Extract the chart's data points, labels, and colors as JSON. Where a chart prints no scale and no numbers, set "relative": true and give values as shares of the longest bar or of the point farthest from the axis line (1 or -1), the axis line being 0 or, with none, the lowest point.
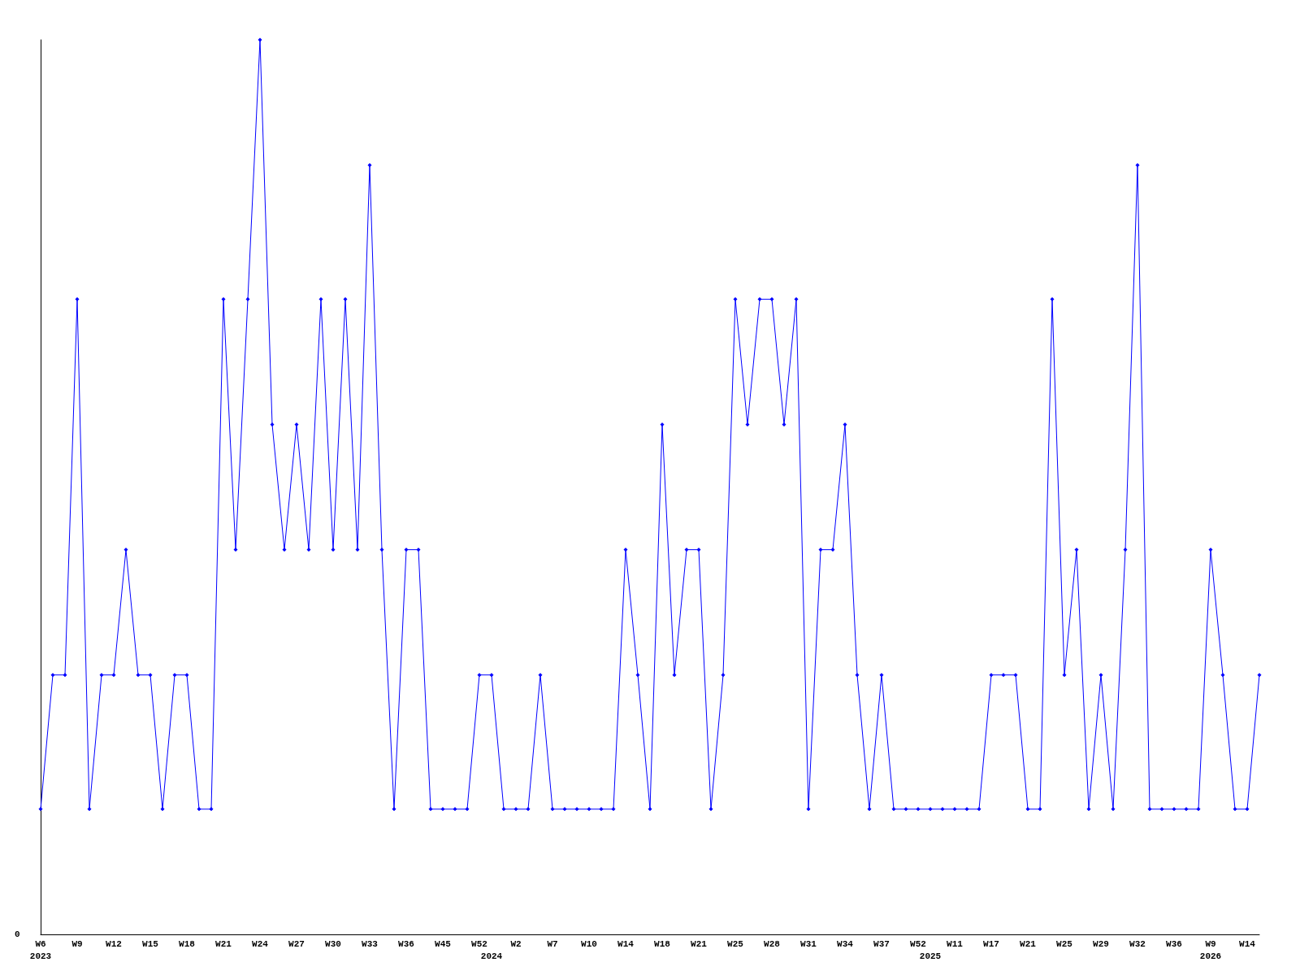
{
  "chart_data": {
    "type": "line",
    "relative": true,
    "annotations": [
      "0"
    ],
    "grid": false,
    "marker": "diamond",
    "line_style": "solid",
    "categories": [
      "W6\n2023",
      null,
      null,
      "W9",
      null,
      null,
      "W12",
      null,
      null,
      "W15",
      null,
      null,
      "W18",
      null,
      null,
      "W21",
      null,
      null,
      "W24",
      null,
      null,
      "W27",
      null,
      null,
      "W30",
      null,
      null,
      "W33",
      null,
      null,
      "W36",
      null,
      null,
      "W45",
      null,
      null,
      "W52",
      "\n2024",
      null,
      "W2",
      null,
      null,
      "W7",
      null,
      null,
      "W10",
      null,
      null,
      "W14",
      null,
      null,
      "W18",
      null,
      null,
      "W21",
      null,
      null,
      "W25",
      null,
      null,
      "W28",
      null,
      null,
      "W31",
      null,
      null,
      "W34",
      null,
      null,
      "W37",
      null,
      null,
      "W52",
      "\n2025",
      null,
      "W11",
      null,
      null,
      "W17",
      null,
      null,
      "W21",
      null,
      null,
      "W25",
      null,
      null,
      "W29",
      null,
      null,
      "W32",
      null,
      null,
      "W36",
      null,
      null,
      "W9\n2026",
      null,
      null,
      "W14",
      null
    ],
    "series": [
      {
        "color": "#0000ff",
        "values": [
          0.14,
          0.29,
          0.29,
          0.71,
          0.14,
          0.29,
          0.29,
          0.43,
          0.29,
          0.29,
          0.14,
          0.29,
          0.29,
          0.14,
          0.14,
          0.71,
          0.43,
          0.71,
          1,
          0.57,
          0.43,
          0.57,
          0.43,
          0.71,
          0.43,
          0.71,
          0.43,
          0.86,
          0.43,
          0.14,
          0.43,
          0.43,
          0.14,
          0.14,
          0.14,
          0.14,
          0.29,
          0.29,
          0.14,
          0.14,
          0.14,
          0.29,
          0.14,
          0.14,
          0.14,
          0.14,
          0.14,
          0.14,
          0.43,
          0.29,
          0.14,
          0.57,
          0.29,
          0.43,
          0.43,
          0.14,
          0.29,
          0.71,
          0.57,
          0.71,
          0.71,
          0.57,
          0.71,
          0.14,
          0.43,
          0.43,
          0.57,
          0.29,
          0.14,
          0.29,
          0.14,
          0.14,
          0.14,
          0.14,
          0.14,
          0.14,
          0.14,
          0.14,
          0.29,
          0.29,
          0.29,
          0.14,
          0.14,
          0.71,
          0.29,
          0.43,
          0.14,
          0.29,
          0.14,
          0.43,
          0.86,
          0.14,
          0.14,
          0.14,
          0.14,
          0.14,
          0.43,
          0.29,
          0.14,
          0.14,
          0.29
        ]
      }
    ]
  }
}
